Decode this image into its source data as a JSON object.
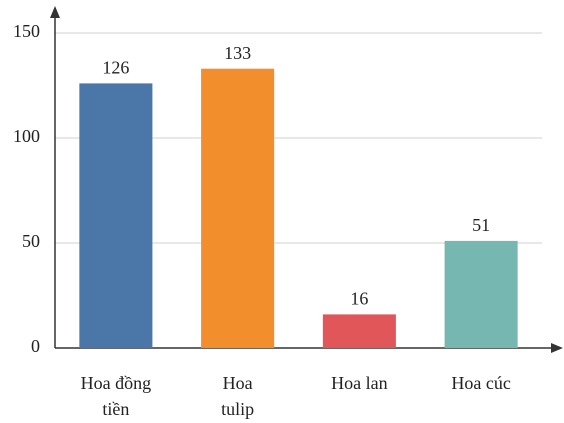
{
  "chart_data": {
    "type": "bar",
    "categories": [
      "Hoa đồng tiền",
      "Hoa tulip",
      "Hoa lan",
      "Hoa cúc"
    ],
    "values": [
      126,
      133,
      16,
      51
    ],
    "colors": [
      "#4a76a8",
      "#f28e2b",
      "#e15759",
      "#76b7b2"
    ],
    "ylim": [
      0,
      150
    ],
    "yticks": [
      0,
      50,
      100,
      150
    ],
    "grid": true
  }
}
